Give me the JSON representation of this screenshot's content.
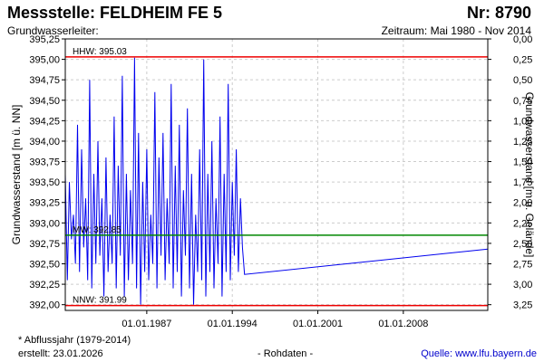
{
  "header": {
    "title": "Messstelle: FELDHEIM FE 5",
    "number": "Nr: 8790",
    "subtitle": "Grundwasserleiter:",
    "period": "Zeitraum: Mai 1980 - Nov 2014"
  },
  "footer": {
    "footnote": "* Abflussjahr (1979-2014)",
    "created": "erstellt:  23.01.2026",
    "data_type": "- Rohdaten -",
    "source": "Quelle:  www.lfu.bayern.de"
  },
  "colors": {
    "series": "#0000ee",
    "hhw": "#ee0000",
    "nnw": "#ee0000",
    "mw": "#008800",
    "grid": "#cccccc",
    "axis": "#000000"
  },
  "chart_data": {
    "type": "line",
    "ylabel": "Grundwasserstand [m ü. NN]",
    "ylabel_right": "Grundwasserstand [m u. Gelände]",
    "ylim": [
      391.93,
      395.25
    ],
    "right_axis": {
      "ground_level": 395.25,
      "ticks": [
        "0,00",
        "0,25",
        "0,50",
        "0,75",
        "1,00",
        "1,25",
        "1,50",
        "1,75",
        "2,00",
        "2,25",
        "2,50",
        "2,75",
        "3,00",
        "3,25"
      ]
    },
    "left_ticks": [
      "392,00",
      "392,25",
      "392,50",
      "392,75",
      "393,00",
      "393,25",
      "393,50",
      "393,75",
      "394,00",
      "394,25",
      "394,50",
      "394,75",
      "395,00",
      "395,25"
    ],
    "x_ticks": [
      "01.01.1987",
      "01.01.1994",
      "01.01.2001",
      "01.01.2008"
    ],
    "xlim": [
      "1980-05-01",
      "2014-11-30"
    ],
    "grid": true,
    "reference_lines": [
      {
        "label": "HHW: 395.03",
        "value": 395.03
      },
      {
        "label": "MW: 392.85",
        "value": 392.85
      },
      {
        "label": "NNW: 391.99",
        "value": 391.99
      }
    ],
    "series": [
      {
        "x": [
          "1980-05-01",
          "1980-07-01",
          "1980-09-01",
          "1980-11-01",
          "1981-01-01",
          "1981-03-01",
          "1981-05-01",
          "1981-07-01",
          "1981-09-01",
          "1981-11-01",
          "1982-01-01",
          "1982-03-01",
          "1982-05-01",
          "1982-07-01",
          "1982-09-01",
          "1982-11-01",
          "1983-01-01",
          "1983-03-01",
          "1983-05-01",
          "1983-07-01",
          "1983-09-01",
          "1983-11-01",
          "1984-01-01",
          "1984-03-01",
          "1984-05-01",
          "1984-07-01",
          "1984-09-01",
          "1984-11-01",
          "1985-01-01",
          "1985-03-01",
          "1985-05-01",
          "1985-07-01",
          "1985-09-01",
          "1985-11-01",
          "1986-01-01",
          "1986-03-01",
          "1986-05-01",
          "1986-07-01",
          "1986-09-01",
          "1986-11-01",
          "1987-01-01",
          "1987-03-01",
          "1987-05-01",
          "1987-07-01",
          "1987-09-01",
          "1987-11-01",
          "1988-01-01",
          "1988-03-01",
          "1988-05-01",
          "1988-07-01",
          "1988-09-01",
          "1988-11-01",
          "1989-01-01",
          "1989-03-01",
          "1989-05-01",
          "1989-07-01",
          "1989-09-01",
          "1989-11-01",
          "1990-01-01",
          "1990-03-01",
          "1990-05-01",
          "1990-07-01",
          "1990-09-01",
          "1990-11-01",
          "1991-01-01",
          "1991-03-01",
          "1991-05-01",
          "1991-07-01",
          "1991-09-01",
          "1991-11-01",
          "1992-01-01",
          "1992-03-01",
          "1992-05-01",
          "1992-07-01",
          "1992-09-01",
          "1992-11-01",
          "1993-01-01",
          "1993-03-01",
          "1993-05-01",
          "1993-07-01",
          "1993-09-01",
          "1993-11-01",
          "1994-01-01",
          "1994-03-01",
          "1994-05-01",
          "1994-07-01",
          "1994-09-01",
          "1994-11-01",
          "1995-01-01",
          "2014-11-30"
        ],
        "values": [
          393.6,
          392.3,
          393.5,
          392.8,
          393.1,
          392.5,
          394.2,
          392.4,
          393.9,
          392.7,
          393.3,
          392.3,
          394.75,
          392.2,
          393.6,
          392.5,
          394.0,
          392.6,
          393.3,
          392.1,
          393.8,
          392.4,
          393.1,
          392.5,
          394.3,
          392.2,
          393.7,
          392.6,
          394.8,
          392.1,
          393.6,
          392.3,
          393.4,
          392.5,
          395.02,
          392.2,
          394.1,
          392.0,
          393.5,
          392.4,
          393.9,
          392.3,
          393.1,
          392.5,
          394.6,
          392.2,
          393.8,
          392.6,
          394.1,
          392.3,
          393.3,
          392.5,
          394.7,
          392.2,
          393.7,
          392.4,
          394.2,
          392.1,
          393.4,
          392.6,
          394.4,
          392.2,
          393.6,
          392.0,
          393.1,
          392.4,
          393.9,
          392.3,
          395.0,
          392.1,
          393.6,
          392.4,
          394.0,
          392.2,
          393.3,
          392.5,
          394.3,
          392.1,
          393.6,
          392.4,
          394.7,
          392.3,
          393.5,
          392.6,
          393.9,
          392.4,
          393.3,
          392.7,
          392.37,
          392.68
        ]
      }
    ]
  }
}
